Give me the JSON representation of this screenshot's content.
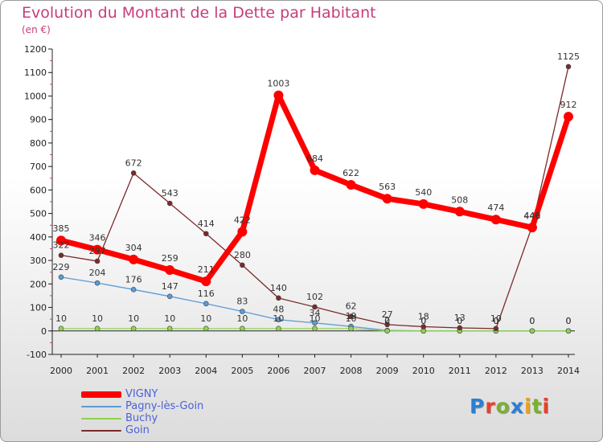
{
  "header": {
    "title": "Evolution du Montant de la Dette par Habitant",
    "subtitle": "(en €)"
  },
  "logo": {
    "text": "Proxiti",
    "letter_colors": [
      "#2a7fd4",
      "#e8402a",
      "#7ab030",
      "#2a7fd4",
      "#e8a020",
      "#7ab030",
      "#e8402a"
    ]
  },
  "chart_data": {
    "type": "line",
    "title": "Evolution du Montant de la Dette par Habitant",
    "subtitle": "(en €)",
    "xlabel": "",
    "ylabel": "",
    "x": [
      "2000",
      "2001",
      "2002",
      "2003",
      "2004",
      "2005",
      "2006",
      "2007",
      "2008",
      "2009",
      "2010",
      "2011",
      "2012",
      "2013",
      "2014"
    ],
    "ylim": [
      -100,
      1200
    ],
    "yticks": [
      "-100",
      "0",
      "100",
      "200",
      "300",
      "400",
      "500",
      "600",
      "700",
      "800",
      "900",
      "1000",
      "1100",
      "1200"
    ],
    "grid": false,
    "legend_position": "bottom-left",
    "series": [
      {
        "name": "VIGNY",
        "color": "#ff0000",
        "values": [
          385,
          346,
          304,
          259,
          211,
          422,
          1003,
          684,
          622,
          563,
          540,
          508,
          474,
          440,
          912
        ],
        "labels": [
          "385",
          "346",
          "304",
          "259",
          "211",
          "422",
          "1003",
          "684",
          "622",
          "563",
          "540",
          "508",
          "474",
          "440",
          "912"
        ]
      },
      {
        "name": "Pagny-lès-Goin",
        "color": "#5b9bd5",
        "values": [
          229,
          204,
          176,
          147,
          116,
          83,
          48,
          34,
          19,
          2,
          0,
          0,
          0,
          0,
          0
        ],
        "labels": [
          "229",
          "204",
          "176",
          "147",
          "116",
          "83",
          "48",
          "34",
          "19",
          "2",
          "0",
          "0",
          "0",
          "0",
          "0"
        ]
      },
      {
        "name": "Buchy",
        "color": "#8fd14f",
        "values": [
          10,
          10,
          10,
          10,
          10,
          10,
          10,
          10,
          10,
          0,
          0,
          0,
          0,
          0,
          0
        ],
        "labels": [
          "10",
          "10",
          "10",
          "10",
          "10",
          "10",
          "10",
          "10",
          "10",
          "0",
          "0",
          "0",
          "0",
          "0",
          "0"
        ]
      },
      {
        "name": "Goin",
        "color": "#7a2a2a",
        "values": [
          322,
          297,
          672,
          543,
          414,
          280,
          140,
          102,
          62,
          27,
          18,
          13,
          10,
          446,
          1125
        ],
        "labels": [
          "322",
          "297",
          "672",
          "543",
          "414",
          "280",
          "140",
          "102",
          "62",
          "27",
          "18",
          "13",
          "10",
          "446",
          "1125"
        ]
      }
    ]
  }
}
